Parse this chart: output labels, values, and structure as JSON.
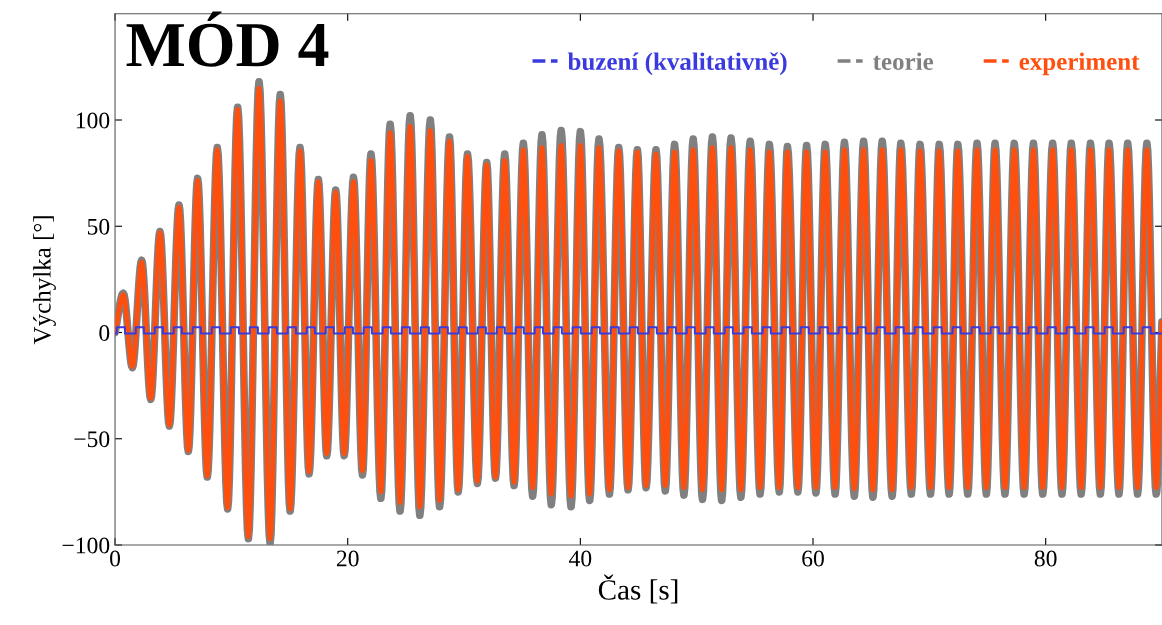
{
  "chart_data": {
    "type": "line",
    "title": "MÓD 4",
    "xlabel": "Čas [s]",
    "ylabel": "Výchylka [°]",
    "xlim": [
      0,
      90
    ],
    "ylim": [
      -100,
      150
    ],
    "xticks": [
      0,
      20,
      40,
      60,
      80
    ],
    "yticks": [
      -100,
      -50,
      0,
      50,
      100
    ],
    "grid": false,
    "legend": "top right",
    "marker": "none",
    "line_style": "solid",
    "x": [
      0,
      0.71,
      1.49,
      2.29,
      3.07,
      3.86,
      4.67,
      5.5,
      6.3,
      7.1,
      7.93,
      8.79,
      9.68,
      10.54,
      11.46,
      12.38,
      13.33,
      14.2,
      15.05,
      15.9,
      16.68,
      17.48,
      18.2,
      18.97,
      19.7,
      20.5,
      21.27,
      22.0,
      22.85,
      23.65,
      24.5,
      25.37,
      26.2,
      27.1,
      27.9,
      28.75,
      29.5,
      30.3,
      31.15,
      31.95,
      32.7,
      33.5,
      34.3,
      35.1,
      35.9,
      36.7,
      37.5,
      38.35,
      39.2,
      40.0,
      40.8,
      41.6,
      42.5,
      43.3,
      44.1,
      44.9,
      45.65,
      46.5,
      47.3,
      48.1,
      48.9,
      49.7,
      50.5,
      51.35,
      52.15,
      52.95,
      53.8,
      54.6,
      55.45,
      56.25,
      57.1,
      57.8,
      58.7,
      59.45,
      60.25,
      61.05,
      61.9,
      62.7,
      63.55,
      64.35,
      65.15,
      65.95,
      66.8,
      67.55,
      68.45,
      69.2,
      70.1,
      70.85,
      71.7,
      72.45,
      73.3,
      74.1,
      74.9,
      75.65,
      76.5,
      77.3,
      78.15,
      78.95,
      79.75,
      80.6,
      81.4,
      82.2,
      83.05,
      83.85,
      84.7,
      85.45,
      86.3,
      87.05,
      87.9,
      88.7,
      89.5,
      90
    ],
    "series": [
      {
        "name": "buzení (kvalitativně)",
        "color": "#3a3ade",
        "type": "step",
        "x": [
          0,
          0.15,
          0.85,
          1.78,
          2.48,
          3.42,
          4.12,
          5.05,
          5.75,
          6.68,
          7.38,
          8.32,
          9.02,
          9.95,
          10.65,
          11.58,
          12.28,
          13.21,
          13.91,
          14.85,
          15.55,
          16.48,
          17.18,
          18.11,
          18.81,
          19.75,
          20.45,
          21.38,
          22.08,
          23.01,
          23.71,
          24.65,
          25.35,
          26.28,
          26.98,
          27.91,
          28.61,
          29.54,
          30.24,
          31.18,
          31.88,
          32.81,
          33.51,
          34.44,
          35.14,
          36.08,
          36.78,
          37.71,
          38.41,
          39.34,
          40.04,
          40.98,
          41.68,
          42.61,
          43.31,
          44.24,
          44.94,
          45.87,
          46.57,
          47.51,
          48.21,
          49.14,
          49.84,
          50.77,
          51.47,
          52.41,
          53.11,
          54.04,
          54.74,
          55.67,
          56.37,
          57.31,
          58.01,
          58.94,
          59.64,
          60.57,
          61.27,
          62.2,
          62.9,
          63.84,
          64.54,
          65.47,
          66.17,
          67.1,
          67.8,
          68.74,
          69.44,
          70.37,
          71.07,
          72.0,
          72.7,
          73.64,
          74.34,
          75.27,
          75.97,
          76.9,
          77.6,
          78.53,
          79.23,
          80.17,
          80.87,
          81.8,
          82.5,
          83.43,
          84.13,
          85.07,
          85.77,
          86.7,
          87.4,
          88.33,
          89.03,
          90
        ],
        "values": [
          -0.5,
          2.5,
          -0.5,
          2.5,
          -0.5,
          2.5,
          -0.5,
          2.5,
          -0.5,
          2.5,
          -0.5,
          2.5,
          -0.5,
          2.5,
          -0.5,
          2.5,
          -0.5,
          2.5,
          -0.5,
          2.5,
          -0.5,
          2.5,
          -0.5,
          2.5,
          -0.5,
          2.5,
          -0.5,
          2.5,
          -0.5,
          2.5,
          -0.5,
          2.5,
          -0.5,
          2.5,
          -0.5,
          2.5,
          -0.5,
          2.5,
          -0.5,
          2.5,
          -0.5,
          2.5,
          -0.5,
          2.5,
          -0.5,
          2.5,
          -0.5,
          2.5,
          -0.5,
          2.5,
          -0.5,
          2.5,
          -0.5,
          2.5,
          -0.5,
          2.5,
          -0.5,
          2.5,
          -0.5,
          2.5,
          -0.5,
          2.5,
          -0.5,
          2.5,
          -0.5,
          2.5,
          -0.5,
          2.5,
          -0.5,
          2.5,
          -0.5,
          2.5,
          -0.5,
          2.5,
          -0.5,
          2.5,
          -0.5,
          2.5,
          -0.5,
          2.5,
          -0.5,
          2.5,
          -0.5,
          2.5,
          -0.5,
          2.5,
          -0.5,
          2.5,
          -0.5,
          2.5,
          -0.5,
          2.5,
          -0.5,
          2.5,
          -0.5,
          2.5,
          -0.5,
          2.5,
          -0.5,
          2.5,
          -0.5,
          2.5,
          -0.5,
          2.5,
          -0.5,
          2.5,
          -0.5,
          2.5,
          -0.5,
          2.5,
          -0.5,
          -0.5
        ]
      },
      {
        "name": "teorie",
        "color": "#808080",
        "values": [
          0,
          18.5,
          -16.5,
          34,
          -31.5,
          47.5,
          -44,
          60,
          -56,
          72.5,
          -68,
          87,
          -83,
          106,
          -97,
          118,
          -99,
          112,
          -84,
          87,
          -66.5,
          72,
          -58,
          67,
          -58,
          73,
          -67,
          84,
          -78,
          98,
          -84,
          102,
          -86,
          100,
          -82,
          92,
          -75,
          84,
          -71,
          80,
          -68.5,
          84,
          -72,
          89,
          -77,
          93,
          -81,
          95,
          -82,
          94.5,
          -79,
          91,
          -76,
          87,
          -74,
          86,
          -73,
          86,
          -74.5,
          88.5,
          -76.5,
          91,
          -78.5,
          92,
          -79,
          91.5,
          -77.5,
          90,
          -76,
          88.5,
          -75,
          87.5,
          -75,
          88,
          -75.5,
          88.5,
          -76,
          89.5,
          -77,
          90,
          -77.5,
          90,
          -77,
          89,
          -76,
          88.5,
          -76,
          88.5,
          -76,
          88.5,
          -76,
          89,
          -76,
          89,
          -76,
          89,
          -76,
          89,
          -76,
          89,
          -76,
          89,
          -76,
          89,
          -76,
          89,
          -76,
          89,
          -76,
          89,
          -76,
          5
        ]
      },
      {
        "name": "experiment",
        "color": "#ff4f0f",
        "values": [
          0,
          17.8,
          -16,
          33,
          -31,
          47,
          -43.5,
          59,
          -55.5,
          71.5,
          -67.5,
          86,
          -82.5,
          105,
          -96,
          115,
          -97,
          109,
          -83,
          85.5,
          -65.5,
          71,
          -57,
          66,
          -57,
          71,
          -65,
          81,
          -75,
          94,
          -80,
          97,
          -82,
          95,
          -79,
          90,
          -74,
          83,
          -70,
          79,
          -68,
          81,
          -70.5,
          86,
          -73,
          87,
          -76,
          88,
          -77,
          88,
          -76,
          87,
          -74,
          85.5,
          -73,
          85,
          -72,
          84,
          -72,
          85,
          -73,
          86,
          -74,
          87,
          -74,
          87,
          -74,
          86,
          -73,
          85,
          -73,
          85,
          -73,
          85,
          -73,
          85,
          -73,
          86,
          -73.5,
          86,
          -74,
          86,
          -74,
          86,
          -73,
          85.5,
          -73,
          85.5,
          -73,
          85.5,
          -73,
          86,
          -73,
          86,
          -73,
          86,
          -73,
          86,
          -73,
          86,
          -73,
          86,
          -73,
          86,
          -73,
          86,
          -73,
          86,
          -73,
          86,
          -73,
          5
        ]
      }
    ]
  }
}
